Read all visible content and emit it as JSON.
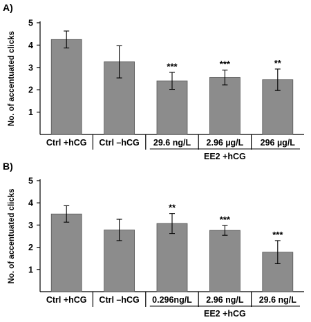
{
  "chart_data": [
    {
      "type": "bar",
      "panel_label": "A)",
      "ylabel": "No. of accentuated clicks",
      "ylim": [
        0,
        5
      ],
      "yticks": [
        "1",
        "2",
        "3",
        "4",
        "5"
      ],
      "categories": [
        "Ctrl +hCG",
        "Ctrl –hCG",
        "29.6 ng/L",
        "2.96 µg/L",
        "296 µg/L"
      ],
      "values": [
        4.25,
        3.25,
        2.4,
        2.55,
        2.45
      ],
      "errors": [
        0.38,
        0.72,
        0.38,
        0.33,
        0.48
      ],
      "significance": [
        "",
        "",
        "***",
        "***",
        "**"
      ],
      "group_label": "EE2 +hCG",
      "group_start": 2,
      "group_end": 4,
      "grid": false
    },
    {
      "type": "bar",
      "panel_label": "B)",
      "ylabel": "No. of accentuated clicks",
      "ylim": [
        0,
        5
      ],
      "yticks": [
        "1",
        "2",
        "3",
        "4",
        "5"
      ],
      "categories": [
        "Ctrl +hCG",
        "Ctrl –hCG",
        "0.296ng/L",
        "2.96 ng/L",
        "29.6 ng/L"
      ],
      "values": [
        3.5,
        2.78,
        3.07,
        2.76,
        1.78
      ],
      "errors": [
        0.37,
        0.48,
        0.45,
        0.22,
        0.52
      ],
      "significance": [
        "",
        "",
        "**",
        "***",
        "***"
      ],
      "group_label": "EE2 +hCG",
      "group_start": 2,
      "group_end": 4,
      "grid": false
    }
  ],
  "colors": {
    "bar": "#8c8c8c",
    "axis": "#000000"
  }
}
